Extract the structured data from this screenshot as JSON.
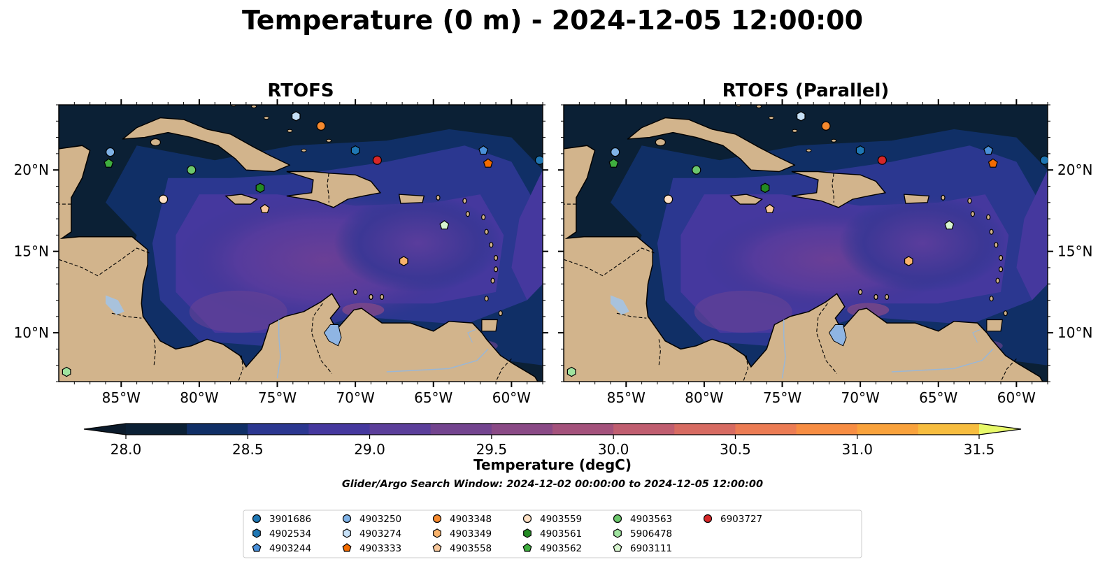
{
  "figure": {
    "title": "Temperature (0 m) - 2024-12-05 12:00:00"
  },
  "chart_data": {
    "type": "heatmap",
    "panels": [
      {
        "title": "RTOFS",
        "lon_range": [
          -89,
          -58
        ],
        "lat_range": [
          7,
          24
        ]
      },
      {
        "title": "RTOFS (Parallel)",
        "lon_range": [
          -89,
          -58
        ],
        "lat_range": [
          7,
          24
        ]
      }
    ],
    "x_ticks": [
      {
        "value": -85,
        "label": "85°W"
      },
      {
        "value": -80,
        "label": "80°W"
      },
      {
        "value": -75,
        "label": "75°W"
      },
      {
        "value": -70,
        "label": "70°W"
      },
      {
        "value": -65,
        "label": "65°W"
      },
      {
        "value": -60,
        "label": "60°W"
      }
    ],
    "y_ticks": [
      {
        "value": 10,
        "label": "10°N"
      },
      {
        "value": 15,
        "label": "15°N"
      },
      {
        "value": 20,
        "label": "20°N"
      }
    ],
    "colorbar": {
      "label": "Temperature (degC)",
      "min": 28.0,
      "max": 31.5,
      "step": 0.25,
      "extend": "both",
      "ticks": [
        "28.0",
        "28.5",
        "29.0",
        "29.5",
        "30.0",
        "30.5",
        "31.0",
        "31.5"
      ],
      "colors": [
        "#0b2035",
        "#102f66",
        "#2b3790",
        "#45389e",
        "#5b3e9a",
        "#73448f",
        "#8a4a86",
        "#a4527c",
        "#c05e70",
        "#d76b62",
        "#ec7c54",
        "#f78d43",
        "#f9a23c",
        "#f7bd3f",
        "#f1d748"
      ],
      "under_color": "#0b1b2b",
      "over_color": "#e8f96a"
    },
    "search_window": "Glider/Argo Search Window: 2024-12-02 00:00:00 to 2024-12-05 12:00:00",
    "platforms": [
      {
        "id": "3901686",
        "color": "#1f77b4",
        "marker": "circle",
        "lon": -58.2,
        "lat": 20.6
      },
      {
        "id": "4902534",
        "color": "#1f77b4",
        "marker": "hexagon",
        "lon": -70.0,
        "lat": 21.2
      },
      {
        "id": "4903244",
        "color": "#4a90d9",
        "marker": "pentagon",
        "lon": -61.8,
        "lat": 21.2
      },
      {
        "id": "4903250",
        "color": "#7fb2e6",
        "marker": "circle",
        "lon": -85.7,
        "lat": 21.1
      },
      {
        "id": "4903274",
        "color": "#c6e0f7",
        "marker": "hexagon",
        "lon": -73.8,
        "lat": 23.3
      },
      {
        "id": "4903333",
        "color": "#f26b00",
        "marker": "pentagon",
        "lon": -61.5,
        "lat": 20.4
      },
      {
        "id": "4903348",
        "color": "#f5892e",
        "marker": "circle",
        "lon": -72.2,
        "lat": 22.7
      },
      {
        "id": "4903349",
        "color": "#f8b26b",
        "marker": "hexagon",
        "lon": -66.9,
        "lat": 14.4
      },
      {
        "id": "4903558",
        "color": "#f7c79b",
        "marker": "pentagon",
        "lon": -75.8,
        "lat": 17.6
      },
      {
        "id": "4903559",
        "color": "#fde0c4",
        "marker": "circle",
        "lon": -82.3,
        "lat": 18.2
      },
      {
        "id": "4903561",
        "color": "#238b23",
        "marker": "hexagon",
        "lon": -76.1,
        "lat": 18.9
      },
      {
        "id": "4903562",
        "color": "#3fae3f",
        "marker": "pentagon",
        "lon": -85.8,
        "lat": 20.4
      },
      {
        "id": "4903563",
        "color": "#6cc76c",
        "marker": "circle",
        "lon": -80.5,
        "lat": 20.0
      },
      {
        "id": "5906478",
        "color": "#9fe39f",
        "marker": "hexagon",
        "lon": -88.5,
        "lat": 7.6
      },
      {
        "id": "6903111",
        "color": "#d8f5d0",
        "marker": "pentagon",
        "lon": -64.3,
        "lat": 16.6
      },
      {
        "id": "6903727",
        "color": "#d62728",
        "marker": "circle",
        "lon": -68.6,
        "lat": 20.6
      }
    ]
  }
}
